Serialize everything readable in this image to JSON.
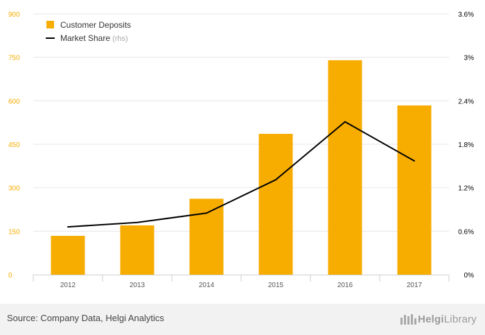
{
  "chart_data": {
    "type": "bar",
    "categories": [
      "2012",
      "2013",
      "2014",
      "2015",
      "2016",
      "2017"
    ],
    "series": [
      {
        "name": "Customer Deposits",
        "type": "bar",
        "axis": "left",
        "color": "#f7ad00",
        "values": [
          134,
          170,
          262,
          486,
          740,
          584
        ]
      },
      {
        "name": "Market Share",
        "type": "line",
        "axis": "right",
        "color": "#000000",
        "values": [
          0.66,
          0.72,
          0.85,
          1.31,
          2.11,
          1.57
        ]
      }
    ],
    "legend": {
      "position": "top-left",
      "items": [
        {
          "label": "Customer Deposits",
          "suffix": ""
        },
        {
          "label": "Market Share",
          "suffix": " (rhs)"
        }
      ]
    },
    "y_left": {
      "ticks": [
        "0",
        "150",
        "300",
        "450",
        "600",
        "750",
        "900"
      ],
      "min": 0,
      "max": 900,
      "color": "#f7ad00"
    },
    "y_right": {
      "ticks": [
        "0%",
        "0.6%",
        "1.2%",
        "1.8%",
        "2.4%",
        "3%",
        "3.6%"
      ],
      "min": 0,
      "max": 3.6,
      "color": "#000000"
    },
    "grid": true
  },
  "footer": {
    "source": "Source: Company Data, Helgi Analytics",
    "logo_part1": "Helgi",
    "logo_part2": "Library"
  }
}
